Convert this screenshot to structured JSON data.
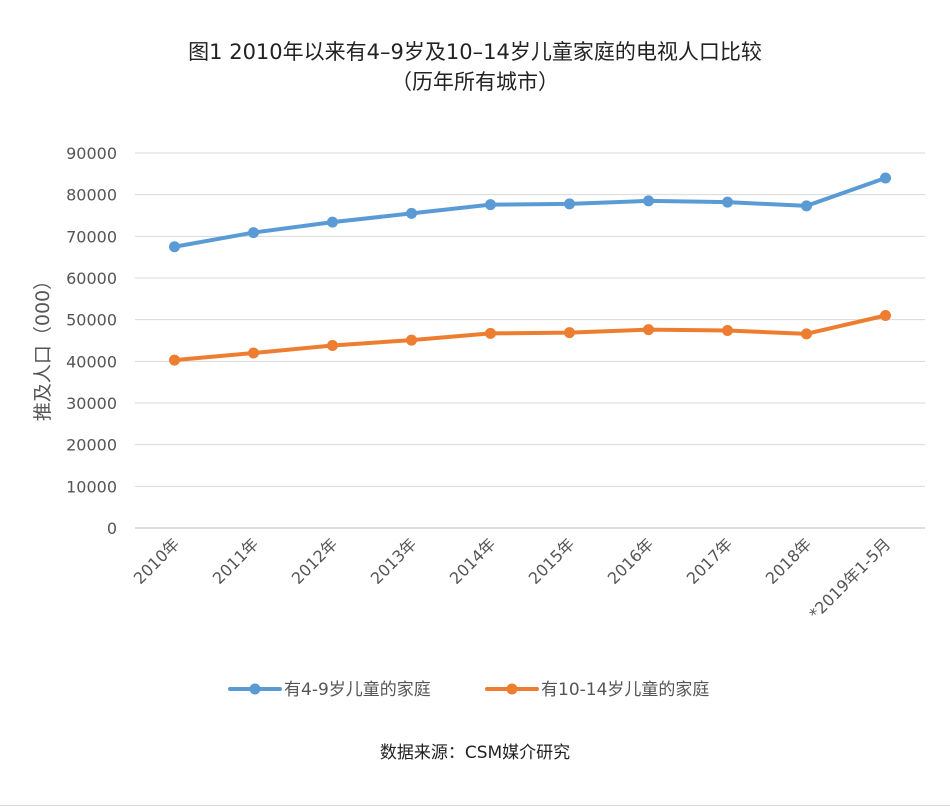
{
  "chart_data": {
    "type": "line",
    "title_line1": "图1  2010年以来有4–9岁及10–14岁儿童家庭的电视人口比较",
    "title_line2": "（历年所有城市）",
    "ylabel": "推及人口（000）",
    "xlabel": "",
    "ylim": [
      0,
      90000
    ],
    "yticks": [
      "0",
      "10000",
      "20000",
      "30000",
      "40000",
      "50000",
      "60000",
      "70000",
      "80000",
      "90000"
    ],
    "categories": [
      "2010年",
      "2011年",
      "2012年",
      "2013年",
      "2014年",
      "2015年",
      "2016年",
      "2017年",
      "2018年",
      "*2019年1-5月"
    ],
    "series": [
      {
        "name": "有4-9岁儿童的家庭",
        "color": "#5b9bd5",
        "values": [
          67500,
          70900,
          73400,
          75500,
          77600,
          77800,
          78500,
          78200,
          77300,
          84000
        ]
      },
      {
        "name": "有10-14岁儿童的家庭",
        "color": "#ed7d31",
        "values": [
          40300,
          42000,
          43800,
          45100,
          46700,
          46900,
          47600,
          47400,
          46600,
          51000
        ]
      }
    ],
    "grid": true,
    "legend_position": "bottom"
  },
  "source": "数据来源：CSM媒介研究"
}
